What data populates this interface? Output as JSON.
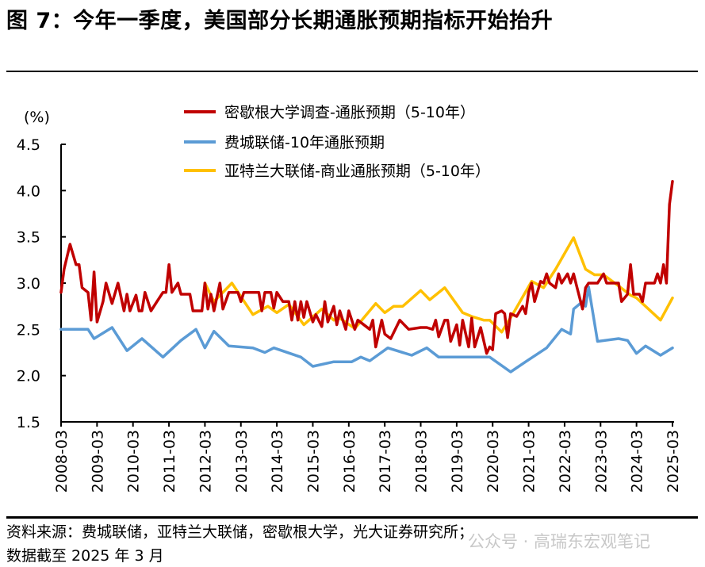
{
  "title": "图 7：今年一季度，美国部分长期通胀预期指标开始抬升",
  "footer": {
    "source": "资料来源：费城联储，亚特兰大联储，密歇根大学，光大证券研究所；",
    "date_note": "数据截至 2025 年 3 月",
    "watermark": "公众号 · 高瑞东宏观笔记"
  },
  "chart_data": {
    "type": "line",
    "ylabel": "(%)",
    "ylim": [
      1.5,
      4.5
    ],
    "yticks": [
      "1.5",
      "2.0",
      "2.5",
      "3.0",
      "3.5",
      "4.0",
      "4.5"
    ],
    "xlim": [
      "2008-03",
      "2025-03"
    ],
    "xticks": [
      "2008-03",
      "2009-03",
      "2010-03",
      "2011-03",
      "2012-03",
      "2013-03",
      "2014-03",
      "2015-03",
      "2016-03",
      "2017-03",
      "2018-03",
      "2019-03",
      "2020-03",
      "2021-03",
      "2022-03",
      "2023-03",
      "2024-03",
      "2025-03"
    ],
    "grid": false,
    "legend_position": "top",
    "series": [
      {
        "name": "密歇根大学调查-通胀预期（5-10年）",
        "color": "#c00000",
        "points": [
          [
            "2008-03",
            2.9
          ],
          [
            "2008-04",
            3.15
          ],
          [
            "2008-06",
            3.42
          ],
          [
            "2008-08",
            3.2
          ],
          [
            "2008-09",
            3.2
          ],
          [
            "2008-10",
            2.95
          ],
          [
            "2008-12",
            2.9
          ],
          [
            "2009-01",
            2.6
          ],
          [
            "2009-02",
            3.12
          ],
          [
            "2009-03",
            2.58
          ],
          [
            "2009-05",
            2.8
          ],
          [
            "2009-06",
            3.0
          ],
          [
            "2009-08",
            2.78
          ],
          [
            "2009-10",
            3.0
          ],
          [
            "2009-12",
            2.7
          ],
          [
            "2010-01",
            2.88
          ],
          [
            "2010-02",
            2.7
          ],
          [
            "2010-04",
            2.87
          ],
          [
            "2010-05",
            2.7
          ],
          [
            "2010-06",
            2.7
          ],
          [
            "2010-07",
            2.9
          ],
          [
            "2010-09",
            2.7
          ],
          [
            "2010-11",
            2.8
          ],
          [
            "2011-01",
            2.9
          ],
          [
            "2011-02",
            2.9
          ],
          [
            "2011-03",
            3.2
          ],
          [
            "2011-04",
            2.9
          ],
          [
            "2011-06",
            3.0
          ],
          [
            "2011-07",
            2.88
          ],
          [
            "2011-10",
            2.88
          ],
          [
            "2011-11",
            2.7
          ],
          [
            "2012-02",
            2.7
          ],
          [
            "2012-03",
            3.0
          ],
          [
            "2012-04",
            2.72
          ],
          [
            "2012-05",
            2.88
          ],
          [
            "2012-06",
            2.7
          ],
          [
            "2012-08",
            3.0
          ],
          [
            "2012-09",
            2.72
          ],
          [
            "2012-11",
            2.9
          ],
          [
            "2013-02",
            2.9
          ],
          [
            "2013-03",
            2.8
          ],
          [
            "2013-04",
            2.9
          ],
          [
            "2013-09",
            2.9
          ],
          [
            "2013-10",
            2.7
          ],
          [
            "2013-11",
            2.9
          ],
          [
            "2014-01",
            2.9
          ],
          [
            "2014-02",
            2.73
          ],
          [
            "2014-03",
            2.9
          ],
          [
            "2014-05",
            2.8
          ],
          [
            "2014-07",
            2.8
          ],
          [
            "2014-08",
            2.6
          ],
          [
            "2014-09",
            2.8
          ],
          [
            "2014-10",
            2.6
          ],
          [
            "2014-11",
            2.8
          ],
          [
            "2014-12",
            2.63
          ],
          [
            "2015-01",
            2.8
          ],
          [
            "2015-03",
            2.58
          ],
          [
            "2015-04",
            2.66
          ],
          [
            "2015-06",
            2.53
          ],
          [
            "2015-07",
            2.8
          ],
          [
            "2015-08",
            2.58
          ],
          [
            "2015-10",
            2.75
          ],
          [
            "2015-11",
            2.55
          ],
          [
            "2015-12",
            2.7
          ],
          [
            "2016-02",
            2.5
          ],
          [
            "2016-03",
            2.7
          ],
          [
            "2016-05",
            2.5
          ],
          [
            "2016-06",
            2.6
          ],
          [
            "2016-10",
            2.5
          ],
          [
            "2016-11",
            2.6
          ],
          [
            "2016-12",
            2.31
          ],
          [
            "2017-02",
            2.6
          ],
          [
            "2017-03",
            2.45
          ],
          [
            "2017-05",
            2.4
          ],
          [
            "2017-08",
            2.6
          ],
          [
            "2017-11",
            2.5
          ],
          [
            "2018-03",
            2.52
          ],
          [
            "2018-05",
            2.52
          ],
          [
            "2018-07",
            2.5
          ],
          [
            "2018-08",
            2.6
          ],
          [
            "2018-09",
            2.42
          ],
          [
            "2018-11",
            2.6
          ],
          [
            "2018-12",
            2.6
          ],
          [
            "2019-01",
            2.37
          ],
          [
            "2019-03",
            2.55
          ],
          [
            "2019-04",
            2.33
          ],
          [
            "2019-05",
            2.6
          ],
          [
            "2019-07",
            2.31
          ],
          [
            "2019-08",
            2.62
          ],
          [
            "2019-09",
            2.31
          ],
          [
            "2019-11",
            2.52
          ],
          [
            "2020-01",
            2.24
          ],
          [
            "2020-02",
            2.31
          ],
          [
            "2020-03",
            2.28
          ],
          [
            "2020-04",
            2.67
          ],
          [
            "2020-06",
            2.7
          ],
          [
            "2020-07",
            2.67
          ],
          [
            "2020-08",
            2.41
          ],
          [
            "2020-09",
            2.67
          ],
          [
            "2020-11",
            2.64
          ],
          [
            "2021-01",
            2.75
          ],
          [
            "2021-02",
            2.67
          ],
          [
            "2021-03",
            2.9
          ],
          [
            "2021-04",
            3.0
          ],
          [
            "2021-05",
            2.8
          ],
          [
            "2021-07",
            3.02
          ],
          [
            "2021-08",
            3.0
          ],
          [
            "2021-09",
            3.1
          ],
          [
            "2021-10",
            3.0
          ],
          [
            "2021-12",
            2.95
          ],
          [
            "2022-01",
            3.1
          ],
          [
            "2022-02",
            3.0
          ],
          [
            "2022-04",
            3.1
          ],
          [
            "2022-05",
            3.0
          ],
          [
            "2022-06",
            3.1
          ],
          [
            "2022-07",
            2.97
          ],
          [
            "2022-09",
            2.72
          ],
          [
            "2022-10",
            2.95
          ],
          [
            "2022-11",
            3.0
          ],
          [
            "2023-02",
            3.0
          ],
          [
            "2023-04",
            3.1
          ],
          [
            "2023-05",
            3.0
          ],
          [
            "2023-09",
            3.0
          ],
          [
            "2023-10",
            2.8
          ],
          [
            "2023-12",
            2.88
          ],
          [
            "2024-01",
            3.2
          ],
          [
            "2024-02",
            2.88
          ],
          [
            "2024-04",
            2.88
          ],
          [
            "2024-05",
            2.8
          ],
          [
            "2024-06",
            3.0
          ],
          [
            "2024-09",
            3.0
          ],
          [
            "2024-10",
            3.1
          ],
          [
            "2024-11",
            3.0
          ],
          [
            "2024-12",
            3.2
          ],
          [
            "2025-01",
            3.0
          ],
          [
            "2025-02",
            3.85
          ],
          [
            "2025-03",
            4.1
          ]
        ]
      },
      {
        "name": "费城联储-10年通胀预期",
        "color": "#5b9bd5",
        "points": [
          [
            "2008-03",
            2.5
          ],
          [
            "2008-12",
            2.5
          ],
          [
            "2009-02",
            2.4
          ],
          [
            "2009-08",
            2.52
          ],
          [
            "2010-01",
            2.27
          ],
          [
            "2010-06",
            2.4
          ],
          [
            "2011-01",
            2.2
          ],
          [
            "2011-07",
            2.38
          ],
          [
            "2011-12",
            2.5
          ],
          [
            "2012-03",
            2.3
          ],
          [
            "2012-06",
            2.48
          ],
          [
            "2012-11",
            2.32
          ],
          [
            "2013-07",
            2.3
          ],
          [
            "2013-11",
            2.25
          ],
          [
            "2014-02",
            2.3
          ],
          [
            "2014-11",
            2.2
          ],
          [
            "2015-03",
            2.1
          ],
          [
            "2015-10",
            2.15
          ],
          [
            "2016-04",
            2.15
          ],
          [
            "2016-07",
            2.2
          ],
          [
            "2016-10",
            2.16
          ],
          [
            "2017-04",
            2.3
          ],
          [
            "2017-12",
            2.22
          ],
          [
            "2018-05",
            2.3
          ],
          [
            "2018-09",
            2.2
          ],
          [
            "2020-02",
            2.2
          ],
          [
            "2020-09",
            2.04
          ],
          [
            "2021-02",
            2.15
          ],
          [
            "2021-09",
            2.3
          ],
          [
            "2022-02",
            2.5
          ],
          [
            "2022-05",
            2.45
          ],
          [
            "2022-06",
            2.72
          ],
          [
            "2022-09",
            2.8
          ],
          [
            "2022-10",
            2.75
          ],
          [
            "2022-11",
            2.96
          ],
          [
            "2023-02",
            2.37
          ],
          [
            "2023-09",
            2.4
          ],
          [
            "2023-12",
            2.38
          ],
          [
            "2024-03",
            2.24
          ],
          [
            "2024-06",
            2.32
          ],
          [
            "2024-11",
            2.22
          ],
          [
            "2025-03",
            2.3
          ]
        ]
      },
      {
        "name": "亚特兰大联储-商业通胀预期（5-10年）",
        "color": "#ffc000",
        "points": [
          [
            "2012-03",
            3.0
          ],
          [
            "2012-06",
            2.8
          ],
          [
            "2012-12",
            3.0
          ],
          [
            "2013-07",
            2.66
          ],
          [
            "2013-12",
            2.75
          ],
          [
            "2014-03",
            2.68
          ],
          [
            "2014-07",
            2.77
          ],
          [
            "2014-12",
            2.55
          ],
          [
            "2015-06",
            2.72
          ],
          [
            "2015-10",
            2.6
          ],
          [
            "2015-12",
            2.62
          ],
          [
            "2016-05",
            2.51
          ],
          [
            "2016-12",
            2.78
          ],
          [
            "2017-03",
            2.68
          ],
          [
            "2017-06",
            2.75
          ],
          [
            "2017-09",
            2.75
          ],
          [
            "2018-03",
            2.92
          ],
          [
            "2018-06",
            2.82
          ],
          [
            "2018-11",
            2.95
          ],
          [
            "2019-05",
            2.68
          ],
          [
            "2019-08",
            2.64
          ],
          [
            "2019-12",
            2.6
          ],
          [
            "2020-02",
            2.6
          ],
          [
            "2020-06",
            2.47
          ],
          [
            "2020-10",
            2.68
          ],
          [
            "2021-04",
            3.02
          ],
          [
            "2021-08",
            2.95
          ],
          [
            "2021-12",
            3.15
          ],
          [
            "2022-06",
            3.49
          ],
          [
            "2022-10",
            3.15
          ],
          [
            "2023-01",
            3.09
          ],
          [
            "2023-04",
            3.09
          ],
          [
            "2023-09",
            2.97
          ],
          [
            "2024-01",
            2.87
          ],
          [
            "2024-03",
            2.84
          ],
          [
            "2024-11",
            2.6
          ],
          [
            "2025-03",
            2.84
          ]
        ]
      }
    ]
  }
}
